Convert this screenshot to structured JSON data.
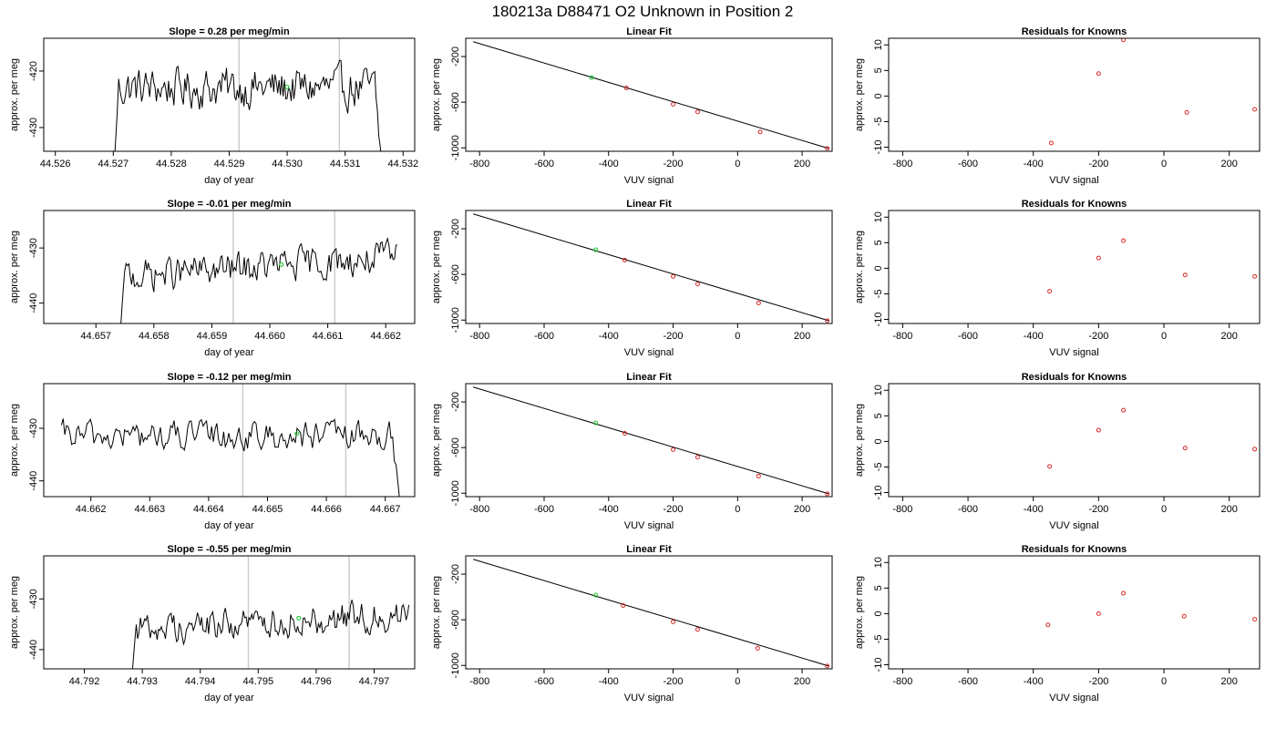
{
  "figure": {
    "title": "180213a     D88471    O2 Unknown in Position  2"
  },
  "chart_data": [
    {
      "type": "line",
      "panel": "time-series",
      "row": 1,
      "title": "Slope =  0.28  per meg/min",
      "xlabel": "day of year",
      "ylabel": "approx. per meg",
      "xlim": [
        44.5258,
        44.5322
      ],
      "ylim": [
        -434.2,
        -414.2
      ],
      "xticks": [
        44.526,
        44.527,
        44.528,
        44.529,
        44.53,
        44.531,
        44.532
      ],
      "xtick_labels": [
        "44.526",
        "44.527",
        "44.528",
        "44.529",
        "44.530",
        "44.531",
        "44.532"
      ],
      "yticks": [
        -420,
        -430
      ],
      "ytick_labels": [
        "-420",
        "-430"
      ],
      "vlines": [
        44.52917,
        44.5309
      ],
      "series": [
        {
          "x_start": 44.527,
          "x_end": 44.53165,
          "base": -423,
          "noise": 3.0,
          "ramp": "up",
          "fall": true
        }
      ],
      "marker": {
        "x": 44.53,
        "y": -422.8
      }
    },
    {
      "type": "scatter",
      "panel": "linear-fit",
      "row": 1,
      "title": "Linear Fit",
      "xlabel": "VUV signal",
      "ylabel": "approx. per meg",
      "xlim": [
        -843,
        293
      ],
      "ylim": [
        -1030,
        -40
      ],
      "xticks": [
        -800,
        -600,
        -400,
        -200,
        0,
        200
      ],
      "xtick_labels": [
        "-800",
        "-600",
        "-400",
        "-200",
        "0",
        "200"
      ],
      "yticks": [
        -200,
        -600,
        -1000
      ],
      "ytick_labels": [
        "-200",
        "-600",
        "-1000"
      ],
      "line": {
        "x": [
          -820,
          282
        ],
        "y": [
          -70,
          -1005
        ]
      },
      "points": [
        {
          "x": -345,
          "y": -475
        },
        {
          "x": -200,
          "y": -618
        },
        {
          "x": -124,
          "y": -685
        },
        {
          "x": 70,
          "y": -861
        },
        {
          "x": 278,
          "y": -1005
        }
      ],
      "unknown": {
        "x": -453,
        "y": -384
      }
    },
    {
      "type": "scatter",
      "panel": "residuals",
      "row": 1,
      "title": "Residuals for Knowns",
      "xlabel": "VUV signal",
      "ylabel": "approx. per meg",
      "xlim": [
        -843,
        293
      ],
      "ylim": [
        -10.8,
        11.3
      ],
      "xticks": [
        -800,
        -600,
        -400,
        -200,
        0,
        200
      ],
      "xtick_labels": [
        "-800",
        "-600",
        "-400",
        "-200",
        "0",
        "200"
      ],
      "yticks": [
        10,
        5,
        0,
        -5,
        -10
      ],
      "ytick_labels": [
        "10",
        "5",
        "0",
        "-5",
        "-10"
      ],
      "points": [
        {
          "x": -345,
          "y": -9.2
        },
        {
          "x": -200,
          "y": 4.4
        },
        {
          "x": -124,
          "y": 11.0
        },
        {
          "x": 70,
          "y": -3.2
        },
        {
          "x": 278,
          "y": -2.6
        }
      ]
    },
    {
      "type": "line",
      "panel": "time-series",
      "row": 2,
      "title": "Slope =  -0.01  per meg/min",
      "xlabel": "day of year",
      "ylabel": "approx. per meg",
      "xlim": [
        44.6561,
        44.6625
      ],
      "ylim": [
        -443.7,
        -423.2
      ],
      "xticks": [
        44.657,
        44.658,
        44.659,
        44.66,
        44.661,
        44.662
      ],
      "xtick_labels": [
        "44.657",
        "44.658",
        "44.659",
        "44.660",
        "44.661",
        "44.662"
      ],
      "yticks": [
        -430,
        -440
      ],
      "ytick_labels": [
        "-430",
        "-440"
      ],
      "vlines": [
        44.65937,
        44.66112
      ],
      "series": [
        {
          "x_start": 44.6574,
          "x_end": 44.6622,
          "base": -433.5,
          "noise": 2.5,
          "ramp": "up",
          "trend": 3.5
        }
      ],
      "marker": {
        "x": 44.6602,
        "y": -433.0
      }
    },
    {
      "type": "scatter",
      "panel": "linear-fit",
      "row": 2,
      "title": "Linear Fit",
      "xlabel": "VUV signal",
      "ylabel": "approx. per meg",
      "xlim": [
        -843,
        293
      ],
      "ylim": [
        -1030,
        -40
      ],
      "xticks": [
        -800,
        -600,
        -400,
        -200,
        0,
        200
      ],
      "xtick_labels": [
        "-800",
        "-600",
        "-400",
        "-200",
        "0",
        "200"
      ],
      "yticks": [
        -200,
        -600,
        -1000
      ],
      "ytick_labels": [
        "-200",
        "-600",
        "-1000"
      ],
      "line": {
        "x": [
          -820,
          282
        ],
        "y": [
          -70,
          -1005
        ]
      },
      "points": [
        {
          "x": -350,
          "y": -475
        },
        {
          "x": -200,
          "y": -618
        },
        {
          "x": -124,
          "y": -685
        },
        {
          "x": 65,
          "y": -850
        },
        {
          "x": 278,
          "y": -1005
        }
      ],
      "unknown": {
        "x": -440,
        "y": -384
      }
    },
    {
      "type": "scatter",
      "panel": "residuals",
      "row": 2,
      "title": "Residuals for Knowns",
      "xlabel": "VUV signal",
      "ylabel": "approx. per meg",
      "xlim": [
        -843,
        293
      ],
      "ylim": [
        -10.8,
        11.3
      ],
      "xticks": [
        -800,
        -600,
        -400,
        -200,
        0,
        200
      ],
      "xtick_labels": [
        "-800",
        "-600",
        "-400",
        "-200",
        "0",
        "200"
      ],
      "yticks": [
        10,
        5,
        0,
        -5,
        -10
      ],
      "ytick_labels": [
        "10",
        "5",
        "0",
        "-5",
        "-10"
      ],
      "points": [
        {
          "x": -350,
          "y": -4.5
        },
        {
          "x": -200,
          "y": 2.0
        },
        {
          "x": -124,
          "y": 5.4
        },
        {
          "x": 65,
          "y": -1.3
        },
        {
          "x": 278,
          "y": -1.6
        }
      ]
    },
    {
      "type": "line",
      "panel": "time-series",
      "row": 3,
      "title": "Slope =  -0.12  per meg/min",
      "xlabel": "day of year",
      "ylabel": "approx. per meg",
      "xlim": [
        44.6612,
        44.6675
      ],
      "ylim": [
        -443.0,
        -421.5
      ],
      "xticks": [
        44.662,
        44.663,
        44.664,
        44.665,
        44.666,
        44.667
      ],
      "xtick_labels": [
        "44.662",
        "44.663",
        "44.664",
        "44.665",
        "44.666",
        "44.667"
      ],
      "yticks": [
        -430,
        -440
      ],
      "ytick_labels": [
        "-430",
        "-440"
      ],
      "vlines": [
        44.66458,
        44.66633
      ],
      "series": [
        {
          "x_start": 44.6615,
          "x_end": 44.6673,
          "base": -431.5,
          "noise": 2.4,
          "ramp": "none",
          "fall": true
        }
      ],
      "marker": {
        "x": 44.6655,
        "y": -431.0
      }
    },
    {
      "type": "scatter",
      "panel": "linear-fit",
      "row": 3,
      "title": "Linear Fit",
      "xlabel": "VUV signal",
      "ylabel": "approx. per meg",
      "xlim": [
        -843,
        293
      ],
      "ylim": [
        -1030,
        -40
      ],
      "xticks": [
        -800,
        -600,
        -400,
        -200,
        0,
        200
      ],
      "xtick_labels": [
        "-800",
        "-600",
        "-400",
        "-200",
        "0",
        "200"
      ],
      "yticks": [
        -200,
        -600,
        -1000
      ],
      "ytick_labels": [
        "-200",
        "-600",
        "-1000"
      ],
      "line": {
        "x": [
          -820,
          282
        ],
        "y": [
          -70,
          -1005
        ]
      },
      "points": [
        {
          "x": -350,
          "y": -475
        },
        {
          "x": -200,
          "y": -618
        },
        {
          "x": -124,
          "y": -685
        },
        {
          "x": 65,
          "y": -850
        },
        {
          "x": 278,
          "y": -1005
        }
      ],
      "unknown": {
        "x": -440,
        "y": -384
      }
    },
    {
      "type": "scatter",
      "panel": "residuals",
      "row": 3,
      "title": "Residuals for Knowns",
      "xlabel": "VUV signal",
      "ylabel": "approx. per meg",
      "xlim": [
        -843,
        293
      ],
      "ylim": [
        -10.8,
        11.3
      ],
      "xticks": [
        -800,
        -600,
        -400,
        -200,
        0,
        200
      ],
      "xtick_labels": [
        "-800",
        "-600",
        "-400",
        "-200",
        "0",
        "200"
      ],
      "yticks": [
        10,
        5,
        0,
        -5,
        -10
      ],
      "ytick_labels": [
        "10",
        "5",
        "0",
        "-5",
        "-10"
      ],
      "points": [
        {
          "x": -350,
          "y": -4.9
        },
        {
          "x": -200,
          "y": 2.2
        },
        {
          "x": -124,
          "y": 6.1
        },
        {
          "x": 65,
          "y": -1.3
        },
        {
          "x": 278,
          "y": -1.5
        }
      ]
    },
    {
      "type": "line",
      "panel": "time-series",
      "row": 4,
      "title": "Slope =  -0.55  per meg/min",
      "xlabel": "day of year",
      "ylabel": "approx. per meg",
      "xlim": [
        44.7913,
        44.7977
      ],
      "ylim": [
        -443.8,
        -421.5
      ],
      "xticks": [
        44.792,
        44.793,
        44.794,
        44.795,
        44.796,
        44.797
      ],
      "xtick_labels": [
        "44.792",
        "44.793",
        "44.794",
        "44.795",
        "44.796",
        "44.797"
      ],
      "yticks": [
        -430,
        -440
      ],
      "ytick_labels": [
        "-430",
        "-440"
      ],
      "vlines": [
        44.79483,
        44.79657
      ],
      "series": [
        {
          "x_start": 44.7928,
          "x_end": 44.7976,
          "base": -434.5,
          "noise": 2.6,
          "ramp": "up",
          "trend": 3.0
        }
      ],
      "marker": {
        "x": 44.7957,
        "y": -433.8
      }
    },
    {
      "type": "scatter",
      "panel": "linear-fit",
      "row": 4,
      "title": "Linear Fit",
      "xlabel": "VUV signal",
      "ylabel": "approx. per meg",
      "xlim": [
        -843,
        293
      ],
      "ylim": [
        -1030,
        -40
      ],
      "xticks": [
        -800,
        -600,
        -400,
        -200,
        0,
        200
      ],
      "xtick_labels": [
        "-800",
        "-600",
        "-400",
        "-200",
        "0",
        "200"
      ],
      "yticks": [
        -200,
        -600,
        -1000
      ],
      "ytick_labels": [
        "-200",
        "-600",
        "-1000"
      ],
      "line": {
        "x": [
          -820,
          282
        ],
        "y": [
          -70,
          -1005
        ]
      },
      "points": [
        {
          "x": -355,
          "y": -475
        },
        {
          "x": -200,
          "y": -618
        },
        {
          "x": -124,
          "y": -685
        },
        {
          "x": 62,
          "y": -850
        },
        {
          "x": 278,
          "y": -1005
        }
      ],
      "unknown": {
        "x": -440,
        "y": -384
      }
    },
    {
      "type": "scatter",
      "panel": "residuals",
      "row": 4,
      "title": "Residuals for Knowns",
      "xlabel": "VUV signal",
      "ylabel": "approx. per meg",
      "xlim": [
        -843,
        293
      ],
      "ylim": [
        -10.8,
        11.3
      ],
      "xticks": [
        -800,
        -600,
        -400,
        -200,
        0,
        200
      ],
      "xtick_labels": [
        "-800",
        "-600",
        "-400",
        "-200",
        "0",
        "200"
      ],
      "yticks": [
        10,
        5,
        0,
        -5,
        -10
      ],
      "ytick_labels": [
        "10",
        "5",
        "0",
        "-5",
        "-10"
      ],
      "points": [
        {
          "x": -355,
          "y": -2.2
        },
        {
          "x": -200,
          "y": 0.0
        },
        {
          "x": -124,
          "y": 4.0
        },
        {
          "x": 62,
          "y": -0.5
        },
        {
          "x": 278,
          "y": -1.1
        }
      ]
    }
  ],
  "colors": {
    "line": "#000000",
    "point": "#d62728",
    "unknown": "#2ecc40",
    "vline": "#cccccc",
    "axis": "#000000"
  }
}
